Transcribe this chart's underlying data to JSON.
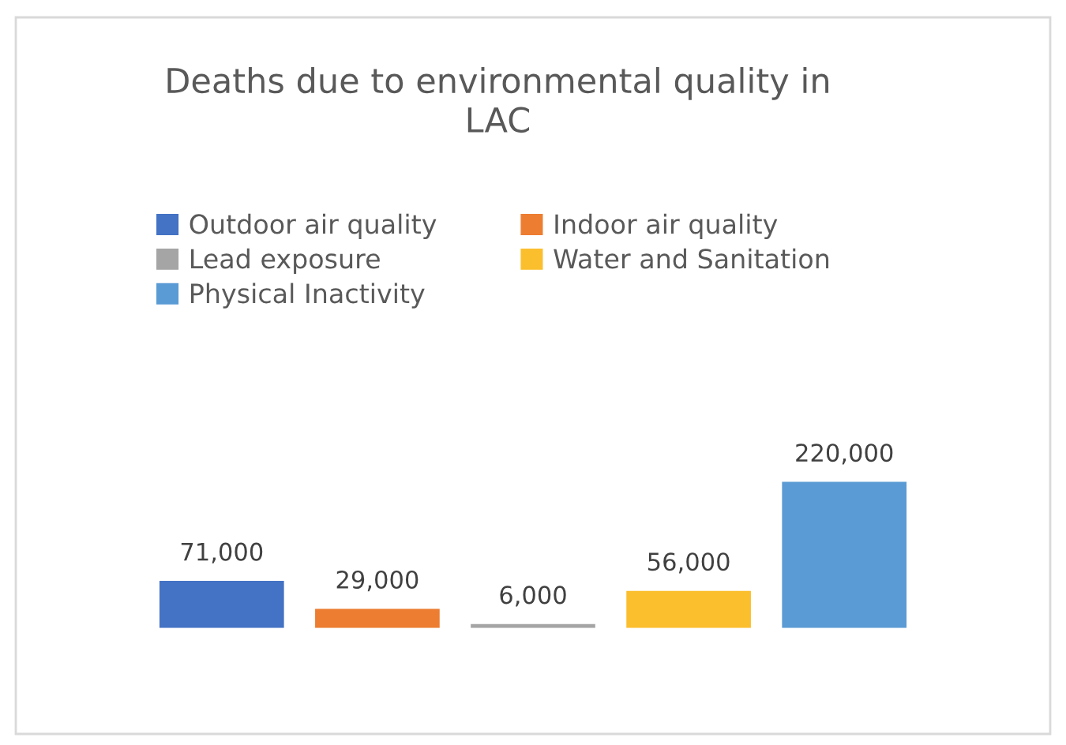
{
  "chart_data": {
    "type": "bar",
    "title": "Deaths due to environmental quality in\nLAC",
    "categories": [
      null
    ],
    "series": [
      {
        "name": "Outdoor air quality",
        "color": "#4472c4",
        "values": [
          71000
        ],
        "value_labels": [
          "71,000"
        ]
      },
      {
        "name": "Indoor air quality",
        "color": "#ed7d31",
        "values": [
          29000
        ],
        "value_labels": [
          "29,000"
        ]
      },
      {
        "name": "Lead exposure",
        "color": "#a5a5a5",
        "values": [
          6000
        ],
        "value_labels": [
          "6,000"
        ]
      },
      {
        "name": "Water and Sanitation",
        "color": "#fbbf2e",
        "values": [
          56000
        ],
        "value_labels": [
          "56,000"
        ]
      },
      {
        "name": "Physical Inactivity",
        "color": "#5b9bd5",
        "values": [
          220000
        ],
        "value_labels": [
          "220,000"
        ]
      }
    ],
    "legend": "top"
  }
}
